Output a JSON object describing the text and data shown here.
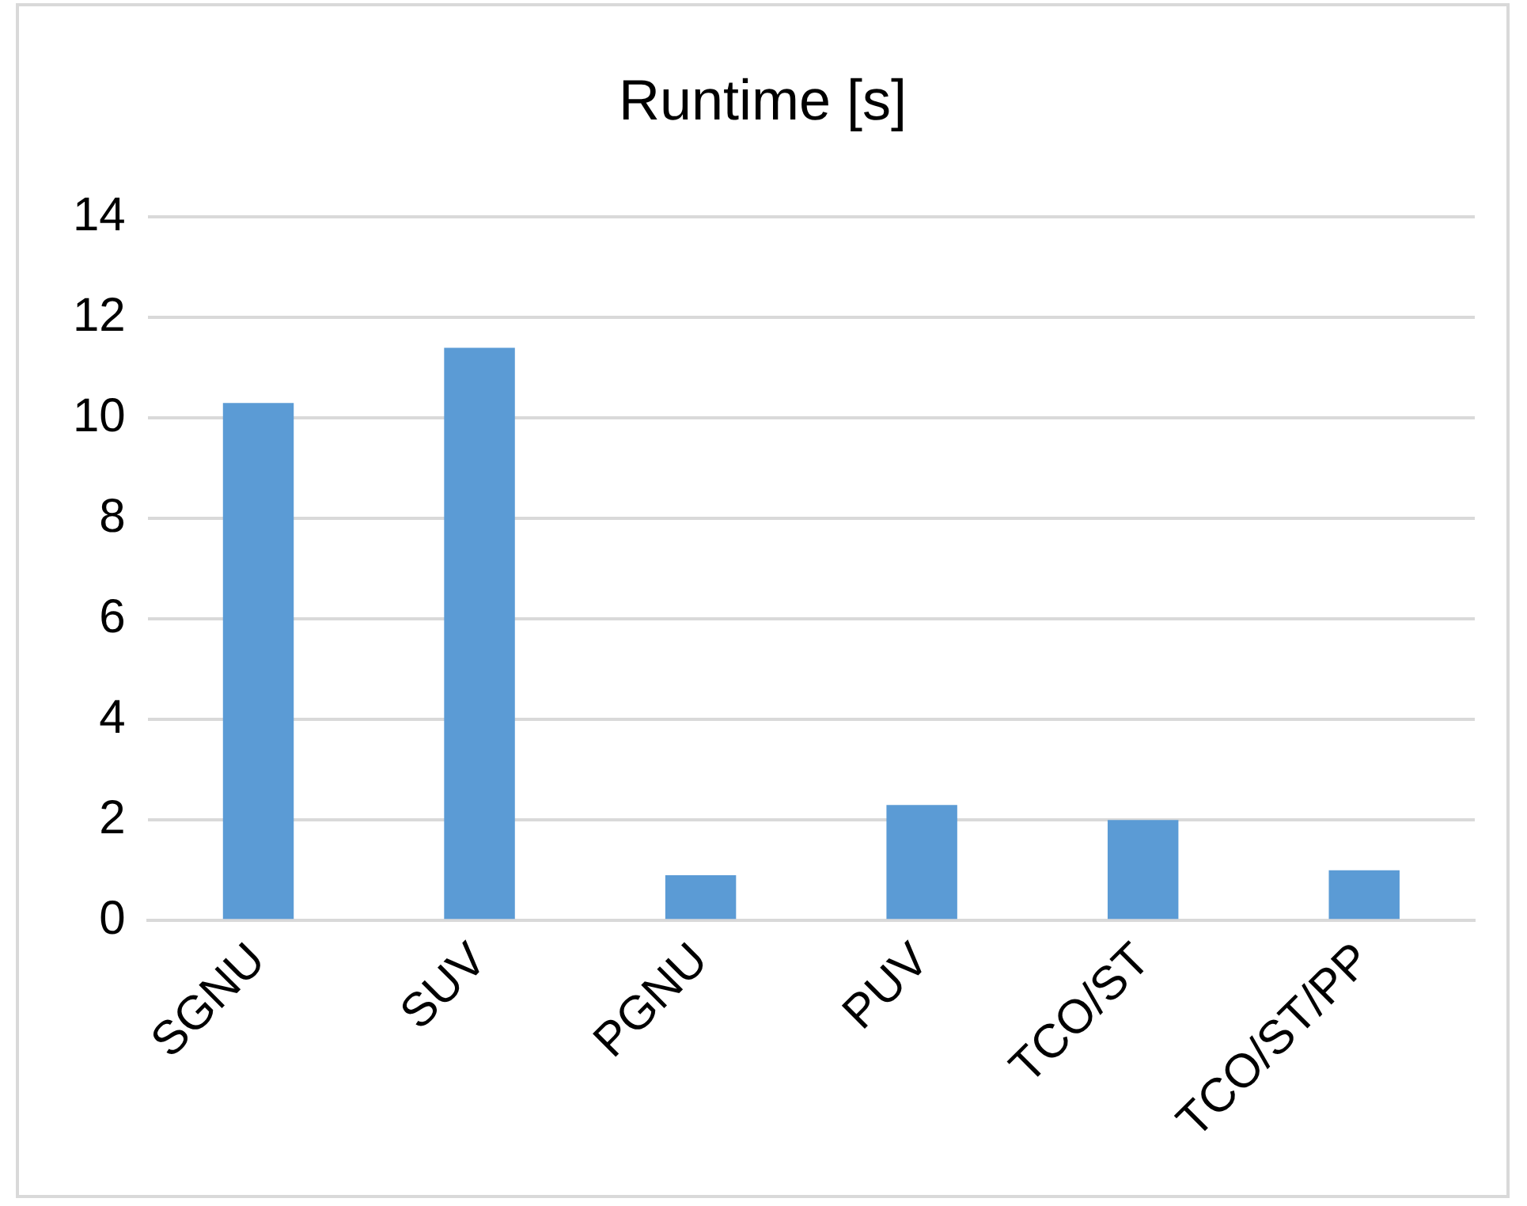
{
  "chart_data": {
    "type": "bar",
    "title": "Runtime [s]",
    "categories": [
      "SGNU",
      "SUV",
      "PGNU",
      "PUV",
      "TCO/ST",
      "TCO/ST/PP"
    ],
    "values": [
      10.3,
      11.4,
      0.9,
      2.3,
      2.0,
      1.0
    ],
    "color": "#5b9bd5",
    "ylim": [
      0,
      14
    ],
    "yticks": [
      0,
      2,
      4,
      6,
      8,
      10,
      12,
      14
    ],
    "grid": "y",
    "legend": false
  }
}
